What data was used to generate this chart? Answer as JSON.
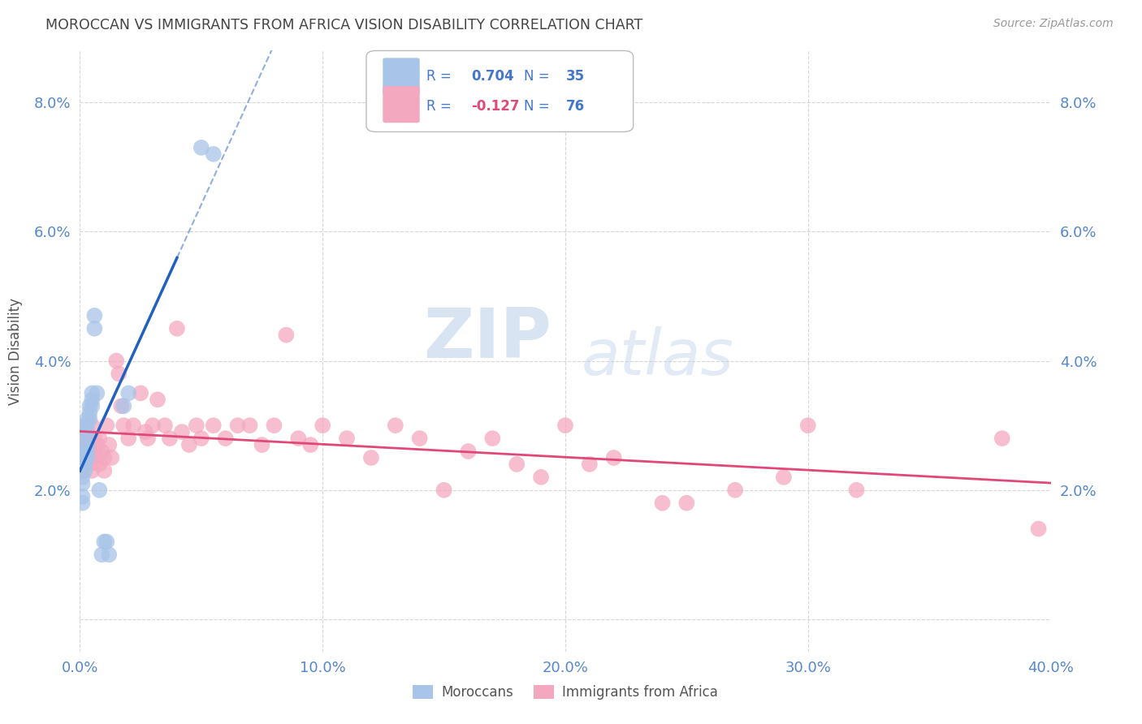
{
  "title": "MOROCCAN VS IMMIGRANTS FROM AFRICA VISION DISABILITY CORRELATION CHART",
  "source": "Source: ZipAtlas.com",
  "ylabel": "Vision Disability",
  "xlim": [
    0.0,
    0.4
  ],
  "ylim": [
    -0.005,
    0.088
  ],
  "yticks": [
    0.0,
    0.02,
    0.04,
    0.06,
    0.08
  ],
  "ytick_labels": [
    "",
    "2.0%",
    "4.0%",
    "6.0%",
    "8.0%"
  ],
  "xticks": [
    0.0,
    0.1,
    0.2,
    0.3,
    0.4
  ],
  "xtick_labels": [
    "0.0%",
    "10.0%",
    "20.0%",
    "30.0%",
    "40.0%"
  ],
  "watermark_zip": "ZIP",
  "watermark_atlas": "atlas",
  "moroccan_color": "#a8c4e8",
  "africa_color": "#f4a8bf",
  "moroccan_line_color": "#2060c0",
  "africa_line_color": "#e04878",
  "axis_tick_color": "#5588cc",
  "title_color": "#444444",
  "source_color": "#999999",
  "ylabel_color": "#555555",
  "legend_color": "#4477cc",
  "legend_neg_color": "#e04878",
  "background_color": "#ffffff",
  "grid_color": "#cccccc",
  "moroccan_x": [
    0.001,
    0.001,
    0.001,
    0.001,
    0.001,
    0.002,
    0.002,
    0.002,
    0.002,
    0.002,
    0.002,
    0.003,
    0.003,
    0.003,
    0.003,
    0.003,
    0.003,
    0.004,
    0.004,
    0.004,
    0.005,
    0.005,
    0.005,
    0.006,
    0.006,
    0.007,
    0.008,
    0.009,
    0.01,
    0.011,
    0.012,
    0.05,
    0.055,
    0.02,
    0.018
  ],
  "moroccan_y": [
    0.024,
    0.022,
    0.021,
    0.019,
    0.018,
    0.026,
    0.025,
    0.024,
    0.023,
    0.03,
    0.029,
    0.031,
    0.03,
    0.028,
    0.027,
    0.026,
    0.025,
    0.033,
    0.032,
    0.031,
    0.035,
    0.034,
    0.033,
    0.047,
    0.045,
    0.035,
    0.02,
    0.01,
    0.012,
    0.012,
    0.01,
    0.073,
    0.072,
    0.035,
    0.033
  ],
  "africa_x": [
    0.001,
    0.001,
    0.001,
    0.001,
    0.002,
    0.002,
    0.002,
    0.003,
    0.003,
    0.003,
    0.004,
    0.004,
    0.004,
    0.005,
    0.005,
    0.005,
    0.006,
    0.006,
    0.007,
    0.007,
    0.008,
    0.008,
    0.009,
    0.01,
    0.01,
    0.011,
    0.012,
    0.013,
    0.015,
    0.016,
    0.017,
    0.018,
    0.02,
    0.022,
    0.025,
    0.027,
    0.028,
    0.03,
    0.032,
    0.035,
    0.037,
    0.04,
    0.042,
    0.045,
    0.048,
    0.05,
    0.055,
    0.06,
    0.065,
    0.07,
    0.075,
    0.08,
    0.085,
    0.09,
    0.095,
    0.1,
    0.11,
    0.12,
    0.13,
    0.14,
    0.15,
    0.16,
    0.17,
    0.18,
    0.19,
    0.2,
    0.21,
    0.22,
    0.24,
    0.25,
    0.27,
    0.29,
    0.3,
    0.32,
    0.38,
    0.395
  ],
  "africa_y": [
    0.028,
    0.026,
    0.025,
    0.023,
    0.03,
    0.028,
    0.026,
    0.025,
    0.027,
    0.029,
    0.024,
    0.026,
    0.028,
    0.023,
    0.025,
    0.03,
    0.026,
    0.028,
    0.025,
    0.027,
    0.024,
    0.028,
    0.026,
    0.023,
    0.025,
    0.03,
    0.027,
    0.025,
    0.04,
    0.038,
    0.033,
    0.03,
    0.028,
    0.03,
    0.035,
    0.029,
    0.028,
    0.03,
    0.034,
    0.03,
    0.028,
    0.045,
    0.029,
    0.027,
    0.03,
    0.028,
    0.03,
    0.028,
    0.03,
    0.03,
    0.027,
    0.03,
    0.044,
    0.028,
    0.027,
    0.03,
    0.028,
    0.025,
    0.03,
    0.028,
    0.02,
    0.026,
    0.028,
    0.024,
    0.022,
    0.03,
    0.024,
    0.025,
    0.018,
    0.018,
    0.02,
    0.022,
    0.03,
    0.02,
    0.028,
    0.014
  ]
}
